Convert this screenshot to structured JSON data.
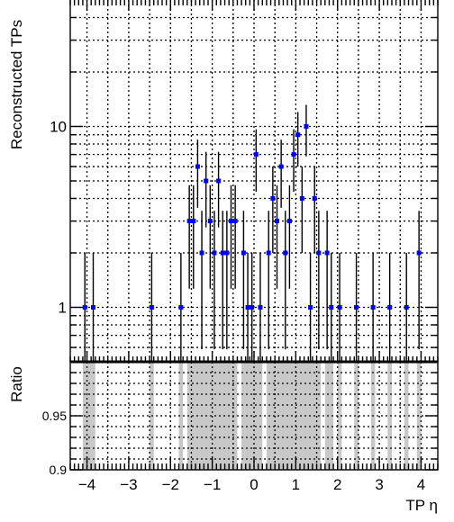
{
  "chart_data": [
    {
      "type": "scatter",
      "panel": "top",
      "ylabel": "Reconstructed TPs",
      "yscale": "log",
      "ylim": [
        0.5,
        50
      ],
      "xlim": [
        -4.4,
        4.4
      ],
      "grid": true,
      "x_ticks": [
        "−4",
        "−3",
        "−2",
        "−1",
        "0",
        "1",
        "2",
        "3",
        "4"
      ],
      "x_tick_values": [
        -4,
        -3,
        -2,
        -1,
        0,
        1,
        2,
        3,
        4
      ],
      "y_ticks": [
        "1",
        "10"
      ],
      "y_tick_values": [
        1,
        10
      ],
      "marker_color": "#0000ff",
      "series": [
        {
          "points": [
            {
              "x": -4.05,
              "y": 1
            },
            {
              "x": -3.85,
              "y": 1
            },
            {
              "x": -2.45,
              "y": 1
            },
            {
              "x": -1.75,
              "y": 1
            },
            {
              "x": -1.55,
              "y": 3
            },
            {
              "x": -1.45,
              "y": 3
            },
            {
              "x": -1.35,
              "y": 6
            },
            {
              "x": -1.25,
              "y": 2
            },
            {
              "x": -1.15,
              "y": 5
            },
            {
              "x": -1.05,
              "y": 3
            },
            {
              "x": -0.95,
              "y": 2
            },
            {
              "x": -0.85,
              "y": 5
            },
            {
              "x": -0.75,
              "y": 2
            },
            {
              "x": -0.65,
              "y": 2
            },
            {
              "x": -0.55,
              "y": 3
            },
            {
              "x": -0.45,
              "y": 3
            },
            {
              "x": -0.25,
              "y": 2
            },
            {
              "x": -0.15,
              "y": 1
            },
            {
              "x": -0.05,
              "y": 1
            },
            {
              "x": 0.05,
              "y": 7
            },
            {
              "x": 0.15,
              "y": 1
            },
            {
              "x": 0.35,
              "y": 2
            },
            {
              "x": 0.45,
              "y": 4
            },
            {
              "x": 0.55,
              "y": 3
            },
            {
              "x": 0.65,
              "y": 6
            },
            {
              "x": 0.75,
              "y": 2
            },
            {
              "x": 0.85,
              "y": 3
            },
            {
              "x": 0.95,
              "y": 7
            },
            {
              "x": 1.05,
              "y": 9
            },
            {
              "x": 1.15,
              "y": 4
            },
            {
              "x": 1.25,
              "y": 10
            },
            {
              "x": 1.35,
              "y": 1
            },
            {
              "x": 1.45,
              "y": 4
            },
            {
              "x": 1.55,
              "y": 2
            },
            {
              "x": 1.75,
              "y": 2
            },
            {
              "x": 1.85,
              "y": 1
            },
            {
              "x": 2.05,
              "y": 1
            },
            {
              "x": 2.45,
              "y": 1
            },
            {
              "x": 2.85,
              "y": 1
            },
            {
              "x": 3.25,
              "y": 1
            },
            {
              "x": 3.65,
              "y": 1
            },
            {
              "x": 3.95,
              "y": 2
            }
          ]
        }
      ]
    },
    {
      "type": "bar",
      "panel": "bottom",
      "xlabel": "TP η",
      "ylabel": "Ratio",
      "ylim": [
        0.9,
        1.0
      ],
      "xlim": [
        -4.4,
        4.4
      ],
      "grid": true,
      "x_ticks": [
        "−4",
        "−3",
        "−2",
        "−1",
        "0",
        "1",
        "2",
        "3",
        "4"
      ],
      "x_tick_values": [
        -4,
        -3,
        -2,
        -1,
        0,
        1,
        2,
        3,
        4
      ],
      "y_ticks": [
        "0.9",
        "0.95"
      ],
      "y_tick_values": [
        0.9,
        0.95
      ],
      "band_color": "#c8c8c8",
      "bands": [
        {
          "x_range": [
            -4.1,
            -3.8
          ],
          "value": 1
        },
        {
          "x_range": [
            -2.5,
            -2.4
          ],
          "value": 1
        },
        {
          "x_range": [
            -1.8,
            -1.7
          ],
          "value": 1
        },
        {
          "x_range": [
            -1.6,
            -0.4
          ],
          "value": 1
        },
        {
          "x_range": [
            -0.3,
            0.2
          ],
          "value": 1
        },
        {
          "x_range": [
            0.3,
            1.6
          ],
          "value": 1
        },
        {
          "x_range": [
            1.7,
            1.9
          ],
          "value": 1
        },
        {
          "x_range": [
            2.0,
            2.1
          ],
          "value": 1
        },
        {
          "x_range": [
            2.4,
            2.5
          ],
          "value": 1
        },
        {
          "x_range": [
            2.8,
            2.9
          ],
          "value": 1
        },
        {
          "x_range": [
            3.2,
            3.3
          ],
          "value": 1
        },
        {
          "x_range": [
            3.6,
            3.7
          ],
          "value": 1
        },
        {
          "x_range": [
            3.9,
            4.0
          ],
          "value": 1
        }
      ]
    }
  ]
}
